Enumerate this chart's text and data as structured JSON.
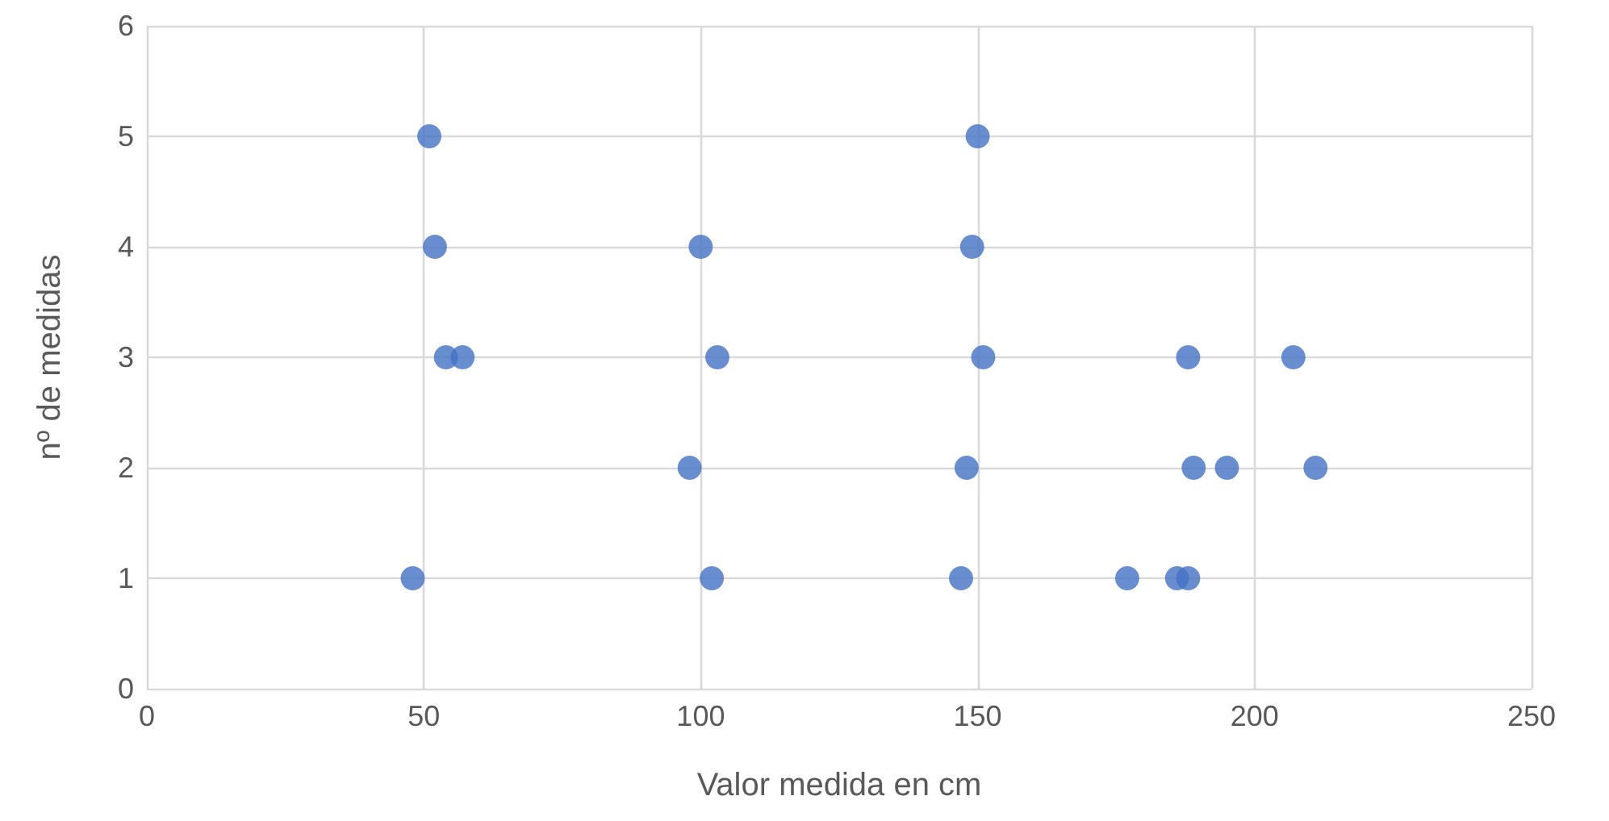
{
  "chart_data": {
    "type": "scatter",
    "xlabel": "Valor medida en cm",
    "ylabel": "nº de medidas",
    "x": [
      51,
      52,
      54,
      57,
      48,
      100,
      103,
      98,
      102,
      150,
      149,
      151,
      148,
      147,
      177,
      186,
      188,
      188,
      189,
      195,
      207,
      211
    ],
    "values": [
      5,
      4,
      3,
      3,
      1,
      4,
      3,
      2,
      1,
      5,
      4,
      3,
      2,
      1,
      1,
      1,
      1,
      3,
      2,
      2,
      3,
      2
    ],
    "color": "#4472c4",
    "marker": "circle",
    "xlim": [
      0,
      250
    ],
    "xticks": [
      0,
      50,
      100,
      150,
      200,
      250
    ],
    "ylim": [
      0,
      6
    ],
    "yticks": [
      0,
      1,
      2,
      3,
      4,
      5,
      6
    ],
    "grid": true
  }
}
